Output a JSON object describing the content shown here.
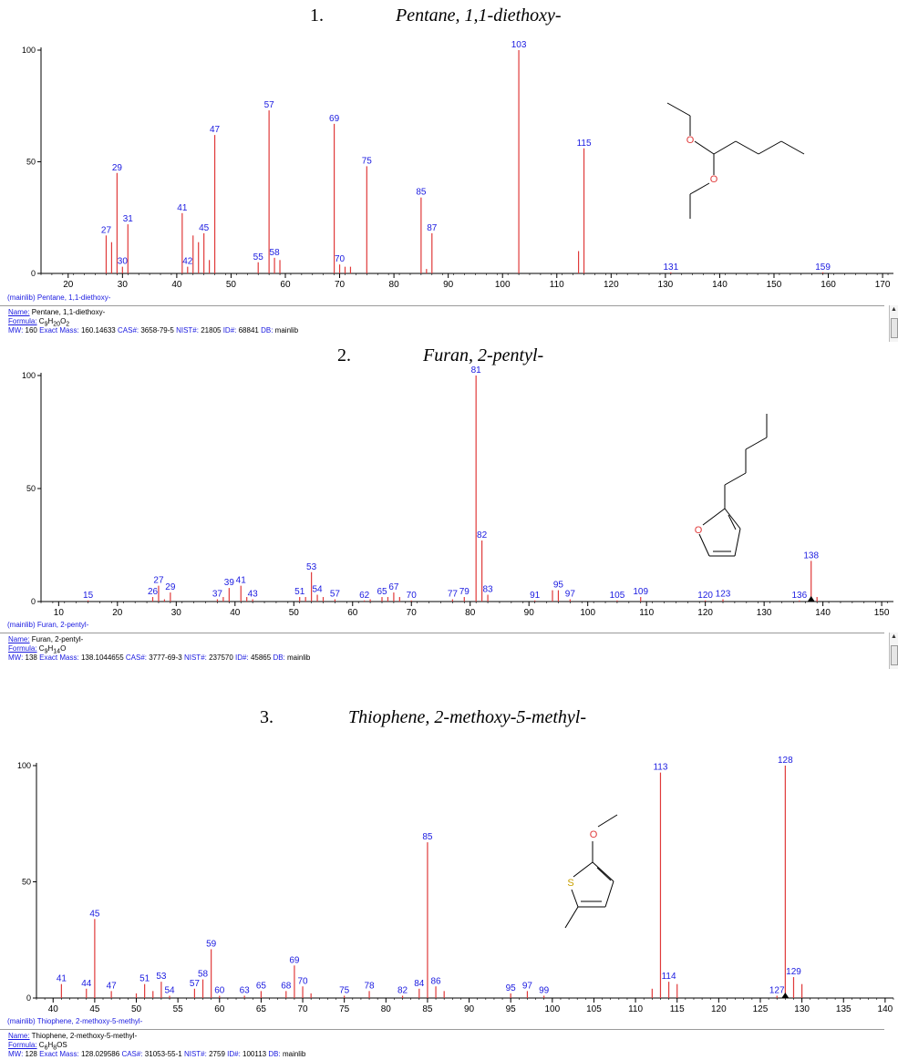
{
  "colors": {
    "peak": "#e03a3a",
    "label": "#1a1ae0",
    "axis": "#000000"
  },
  "spectra": [
    {
      "number": "1.",
      "name": "Pentane, 1,1-diethoxy-",
      "library_line": "(mainlib) Pentane, 1,1-diethoxy-",
      "info": {
        "name_label": "Name:",
        "name": "Pentane, 1,1-diethoxy-",
        "formula_label": "Formula:",
        "formula": "C9H20O2",
        "mw_label": "MW:",
        "mw": "160",
        "exact_label": "Exact Mass:",
        "exact": "160.14633",
        "cas_label": "CAS#:",
        "cas": "3658-79-5",
        "nist_label": "NIST#:",
        "nist": "21805",
        "id_label": "ID#:",
        "id": "68841",
        "db_label": "DB:",
        "db": "mainlib"
      },
      "chart_data": {
        "type": "bar",
        "xlim": [
          15,
          172
        ],
        "ylim": [
          0,
          100
        ],
        "x_ticks": [
          20,
          30,
          40,
          50,
          60,
          70,
          80,
          90,
          100,
          110,
          120,
          130,
          140,
          150,
          160,
          170
        ],
        "y_ticks": [
          0,
          50,
          100
        ],
        "peaks": [
          {
            "mz": 27,
            "intensity": 17,
            "label": "27"
          },
          {
            "mz": 28,
            "intensity": 14
          },
          {
            "mz": 29,
            "intensity": 45,
            "label": "29"
          },
          {
            "mz": 30,
            "intensity": 3,
            "label": "30"
          },
          {
            "mz": 31,
            "intensity": 22,
            "label": "31"
          },
          {
            "mz": 41,
            "intensity": 27,
            "label": "41"
          },
          {
            "mz": 42,
            "intensity": 3,
            "label": "42"
          },
          {
            "mz": 43,
            "intensity": 17
          },
          {
            "mz": 44,
            "intensity": 14
          },
          {
            "mz": 45,
            "intensity": 18,
            "label": "45"
          },
          {
            "mz": 46,
            "intensity": 6
          },
          {
            "mz": 47,
            "intensity": 62,
            "label": "47"
          },
          {
            "mz": 55,
            "intensity": 5,
            "label": "55"
          },
          {
            "mz": 57,
            "intensity": 73,
            "label": "57"
          },
          {
            "mz": 58,
            "intensity": 7,
            "label": "58"
          },
          {
            "mz": 59,
            "intensity": 6
          },
          {
            "mz": 69,
            "intensity": 67,
            "label": "69"
          },
          {
            "mz": 70,
            "intensity": 4,
            "label": "70"
          },
          {
            "mz": 71,
            "intensity": 3
          },
          {
            "mz": 72,
            "intensity": 3
          },
          {
            "mz": 75,
            "intensity": 48,
            "label": "75"
          },
          {
            "mz": 85,
            "intensity": 34,
            "label": "85"
          },
          {
            "mz": 86,
            "intensity": 2
          },
          {
            "mz": 87,
            "intensity": 18,
            "label": "87"
          },
          {
            "mz": 103,
            "intensity": 100,
            "label": "103"
          },
          {
            "mz": 114,
            "intensity": 10
          },
          {
            "mz": 115,
            "intensity": 56,
            "label": "115"
          },
          {
            "mz": 131,
            "intensity": 0.5,
            "label": "131"
          },
          {
            "mz": 159,
            "intensity": 0.5,
            "label": "159"
          }
        ]
      }
    },
    {
      "number": "2.",
      "name": "Furan, 2-pentyl-",
      "library_line": "(mainlib) Furan, 2-pentyl-",
      "info": {
        "name_label": "Name:",
        "name": "Furan, 2-pentyl-",
        "formula_label": "Formula:",
        "formula": "C9H14O",
        "mw_label": "MW:",
        "mw": "138",
        "exact_label": "Exact Mass:",
        "exact": "138.1044655",
        "cas_label": "CAS#:",
        "cas": "3777-69-3",
        "nist_label": "NIST#:",
        "nist": "237570",
        "id_label": "ID#:",
        "id": "45865",
        "db_label": "DB:",
        "db": "mainlib"
      },
      "chart_data": {
        "type": "bar",
        "xlim": [
          7,
          152
        ],
        "ylim": [
          0,
          100
        ],
        "x_ticks": [
          10,
          20,
          30,
          40,
          50,
          60,
          70,
          80,
          90,
          100,
          110,
          120,
          130,
          140,
          150
        ],
        "y_ticks": [
          0,
          50,
          100
        ],
        "molecular_ion_mz": 138,
        "peaks": [
          {
            "mz": 15,
            "intensity": 0.5,
            "label": "15"
          },
          {
            "mz": 26,
            "intensity": 2,
            "label": "26"
          },
          {
            "mz": 27,
            "intensity": 7,
            "label": "27"
          },
          {
            "mz": 28,
            "intensity": 1
          },
          {
            "mz": 29,
            "intensity": 4,
            "label": "29"
          },
          {
            "mz": 37,
            "intensity": 1,
            "label": "37"
          },
          {
            "mz": 38,
            "intensity": 2
          },
          {
            "mz": 39,
            "intensity": 6,
            "label": "39"
          },
          {
            "mz": 41,
            "intensity": 7,
            "label": "41"
          },
          {
            "mz": 42,
            "intensity": 2
          },
          {
            "mz": 43,
            "intensity": 1,
            "label": "43"
          },
          {
            "mz": 51,
            "intensity": 2,
            "label": "51"
          },
          {
            "mz": 52,
            "intensity": 2
          },
          {
            "mz": 53,
            "intensity": 13,
            "label": "53"
          },
          {
            "mz": 54,
            "intensity": 3,
            "label": "54"
          },
          {
            "mz": 55,
            "intensity": 2
          },
          {
            "mz": 57,
            "intensity": 1,
            "label": "57"
          },
          {
            "mz": 62,
            "intensity": 0.5,
            "label": "62"
          },
          {
            "mz": 63,
            "intensity": 1
          },
          {
            "mz": 65,
            "intensity": 2,
            "label": "65"
          },
          {
            "mz": 66,
            "intensity": 2
          },
          {
            "mz": 67,
            "intensity": 4,
            "label": "67"
          },
          {
            "mz": 68,
            "intensity": 2
          },
          {
            "mz": 70,
            "intensity": 0.5,
            "label": "70"
          },
          {
            "mz": 77,
            "intensity": 1,
            "label": "77"
          },
          {
            "mz": 79,
            "intensity": 2,
            "label": "79"
          },
          {
            "mz": 81,
            "intensity": 100,
            "label": "81"
          },
          {
            "mz": 82,
            "intensity": 27,
            "label": "82"
          },
          {
            "mz": 83,
            "intensity": 3,
            "label": "83"
          },
          {
            "mz": 91,
            "intensity": 0.5,
            "label": "91"
          },
          {
            "mz": 94,
            "intensity": 5
          },
          {
            "mz": 95,
            "intensity": 5,
            "label": "95"
          },
          {
            "mz": 97,
            "intensity": 1,
            "label": "97"
          },
          {
            "mz": 105,
            "intensity": 0.5,
            "label": "105"
          },
          {
            "mz": 109,
            "intensity": 2,
            "label": "109"
          },
          {
            "mz": 120,
            "intensity": 0.5,
            "label": "120"
          },
          {
            "mz": 123,
            "intensity": 1,
            "label": "123"
          },
          {
            "mz": 136,
            "intensity": 0.5,
            "label": "136"
          },
          {
            "mz": 138,
            "intensity": 18,
            "label": "138"
          },
          {
            "mz": 139,
            "intensity": 2
          }
        ]
      }
    },
    {
      "number": "3.",
      "name": "Thiophene, 2-methoxy-5-methyl-",
      "library_line": "(mainlib) Thiophene, 2-methoxy-5-methyl-",
      "info": {
        "name_label": "Name:",
        "name": "Thiophene, 2-methoxy-5-methyl-",
        "formula_label": "Formula:",
        "formula": "C6H8OS",
        "mw_label": "MW:",
        "mw": "128",
        "exact_label": "Exact Mass:",
        "exact": "128.029586",
        "cas_label": "CAS#:",
        "cas": "31053-55-1",
        "nist_label": "NIST#:",
        "nist": "2759",
        "id_label": "ID#:",
        "id": "100113",
        "db_label": "DB:",
        "db": "mainlib"
      },
      "chart_data": {
        "type": "bar",
        "xlim": [
          38,
          141
        ],
        "ylim": [
          0,
          100
        ],
        "x_ticks": [
          40,
          45,
          50,
          55,
          60,
          65,
          70,
          75,
          80,
          85,
          90,
          95,
          100,
          105,
          110,
          115,
          120,
          125,
          130,
          135,
          140
        ],
        "y_ticks": [
          0,
          50,
          100
        ],
        "molecular_ion_mz": 128,
        "peaks": [
          {
            "mz": 41,
            "intensity": 6,
            "label": "41"
          },
          {
            "mz": 44,
            "intensity": 4,
            "label": "44"
          },
          {
            "mz": 45,
            "intensity": 34,
            "label": "45"
          },
          {
            "mz": 47,
            "intensity": 3,
            "label": "47"
          },
          {
            "mz": 50,
            "intensity": 2
          },
          {
            "mz": 51,
            "intensity": 6,
            "label": "51"
          },
          {
            "mz": 52,
            "intensity": 3
          },
          {
            "mz": 53,
            "intensity": 7,
            "label": "53"
          },
          {
            "mz": 54,
            "intensity": 1,
            "label": "54"
          },
          {
            "mz": 57,
            "intensity": 4,
            "label": "57"
          },
          {
            "mz": 58,
            "intensity": 8,
            "label": "58"
          },
          {
            "mz": 59,
            "intensity": 21,
            "label": "59"
          },
          {
            "mz": 60,
            "intensity": 1,
            "label": "60"
          },
          {
            "mz": 63,
            "intensity": 1,
            "label": "63"
          },
          {
            "mz": 65,
            "intensity": 3,
            "label": "65"
          },
          {
            "mz": 68,
            "intensity": 3,
            "label": "68"
          },
          {
            "mz": 69,
            "intensity": 14,
            "label": "69"
          },
          {
            "mz": 70,
            "intensity": 5,
            "label": "70"
          },
          {
            "mz": 71,
            "intensity": 2
          },
          {
            "mz": 75,
            "intensity": 1,
            "label": "75"
          },
          {
            "mz": 78,
            "intensity": 3,
            "label": "78"
          },
          {
            "mz": 82,
            "intensity": 1,
            "label": "82"
          },
          {
            "mz": 84,
            "intensity": 4,
            "label": "84"
          },
          {
            "mz": 85,
            "intensity": 67,
            "label": "85"
          },
          {
            "mz": 86,
            "intensity": 5,
            "label": "86"
          },
          {
            "mz": 87,
            "intensity": 3
          },
          {
            "mz": 95,
            "intensity": 2,
            "label": "95"
          },
          {
            "mz": 97,
            "intensity": 3,
            "label": "97"
          },
          {
            "mz": 99,
            "intensity": 1,
            "label": "99"
          },
          {
            "mz": 112,
            "intensity": 4
          },
          {
            "mz": 113,
            "intensity": 97,
            "label": "113"
          },
          {
            "mz": 114,
            "intensity": 7,
            "label": "114"
          },
          {
            "mz": 115,
            "intensity": 6
          },
          {
            "mz": 127,
            "intensity": 1,
            "label": "127"
          },
          {
            "mz": 128,
            "intensity": 100,
            "label": "128"
          },
          {
            "mz": 129,
            "intensity": 9,
            "label": "129"
          },
          {
            "mz": 130,
            "intensity": 6
          }
        ]
      }
    }
  ]
}
